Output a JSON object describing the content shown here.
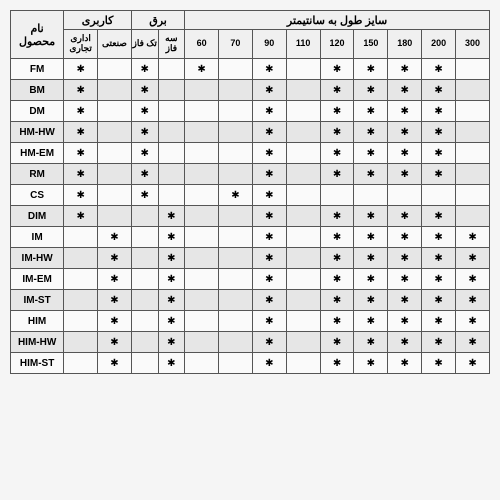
{
  "headers": {
    "product_name": "نام\nمحصول",
    "application": "کاربری",
    "power": "برق",
    "sizes": "سایز طول به سانتیمتر",
    "app_office": "اداری\nتجاری",
    "app_industrial": "صنعتی",
    "power_single": "تک\nفاز",
    "power_three": "سه\nفاز",
    "size_cols": [
      "60",
      "70",
      "90",
      "110",
      "120",
      "150",
      "180",
      "200",
      "300"
    ]
  },
  "dot": "✱",
  "rows": [
    {
      "name": "FM",
      "alt": false,
      "app": [
        true,
        false
      ],
      "pow": [
        true,
        false
      ],
      "sizes": [
        true,
        false,
        true,
        false,
        true,
        true,
        true,
        true,
        false
      ]
    },
    {
      "name": "BM",
      "alt": true,
      "app": [
        true,
        false
      ],
      "pow": [
        true,
        false
      ],
      "sizes": [
        false,
        false,
        true,
        false,
        true,
        true,
        true,
        true,
        false
      ]
    },
    {
      "name": "DM",
      "alt": false,
      "app": [
        true,
        false
      ],
      "pow": [
        true,
        false
      ],
      "sizes": [
        false,
        false,
        true,
        false,
        true,
        true,
        true,
        true,
        false
      ]
    },
    {
      "name": "HM-HW",
      "alt": true,
      "app": [
        true,
        false
      ],
      "pow": [
        true,
        false
      ],
      "sizes": [
        false,
        false,
        true,
        false,
        true,
        true,
        true,
        true,
        false
      ]
    },
    {
      "name": "HM-EM",
      "alt": false,
      "app": [
        true,
        false
      ],
      "pow": [
        true,
        false
      ],
      "sizes": [
        false,
        false,
        true,
        false,
        true,
        true,
        true,
        true,
        false
      ]
    },
    {
      "name": "RM",
      "alt": true,
      "app": [
        true,
        false
      ],
      "pow": [
        true,
        false
      ],
      "sizes": [
        false,
        false,
        true,
        false,
        true,
        true,
        true,
        true,
        false
      ]
    },
    {
      "name": "CS",
      "alt": false,
      "app": [
        true,
        false
      ],
      "pow": [
        true,
        false
      ],
      "sizes": [
        false,
        true,
        true,
        false,
        false,
        false,
        false,
        false,
        false
      ]
    },
    {
      "name": "DIM",
      "alt": true,
      "app": [
        true,
        false
      ],
      "pow": [
        false,
        true
      ],
      "sizes": [
        false,
        false,
        true,
        false,
        true,
        true,
        true,
        true,
        false
      ]
    },
    {
      "name": "IM",
      "alt": false,
      "app": [
        false,
        true
      ],
      "pow": [
        false,
        true
      ],
      "sizes": [
        false,
        false,
        true,
        false,
        true,
        true,
        true,
        true,
        true
      ]
    },
    {
      "name": "IM-HW",
      "alt": true,
      "app": [
        false,
        true
      ],
      "pow": [
        false,
        true
      ],
      "sizes": [
        false,
        false,
        true,
        false,
        true,
        true,
        true,
        true,
        true
      ]
    },
    {
      "name": "IM-EM",
      "alt": false,
      "app": [
        false,
        true
      ],
      "pow": [
        false,
        true
      ],
      "sizes": [
        false,
        false,
        true,
        false,
        true,
        true,
        true,
        true,
        true
      ]
    },
    {
      "name": "IM-ST",
      "alt": true,
      "app": [
        false,
        true
      ],
      "pow": [
        false,
        true
      ],
      "sizes": [
        false,
        false,
        true,
        false,
        true,
        true,
        true,
        true,
        true
      ]
    },
    {
      "name": "HIM",
      "alt": false,
      "app": [
        false,
        true
      ],
      "pow": [
        false,
        true
      ],
      "sizes": [
        false,
        false,
        true,
        false,
        true,
        true,
        true,
        true,
        true
      ]
    },
    {
      "name": "HIM-HW",
      "alt": true,
      "app": [
        false,
        true
      ],
      "pow": [
        false,
        true
      ],
      "sizes": [
        false,
        false,
        true,
        false,
        true,
        true,
        true,
        true,
        true
      ]
    },
    {
      "name": "HIM-ST",
      "alt": false,
      "app": [
        false,
        true
      ],
      "pow": [
        false,
        true
      ],
      "sizes": [
        false,
        false,
        true,
        false,
        true,
        true,
        true,
        true,
        true
      ]
    }
  ],
  "style": {
    "border_color": "#555555",
    "bg": "#fafafa",
    "alt_bg": "#e6e6e6",
    "header_bg": "#f0f0f0"
  }
}
